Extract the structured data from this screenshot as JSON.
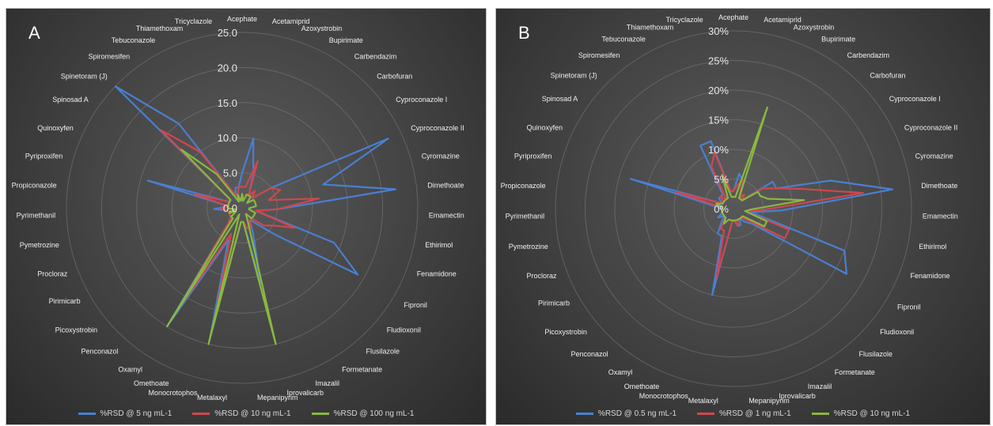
{
  "chart_data": [
    {
      "type": "radar",
      "panel_label": "A",
      "categories": [
        "Acephate",
        "Acetamiprid",
        "Azoxystrobin",
        "Bupirimate",
        "Carbendazim",
        "Carbofuran",
        "Cyproconazole I",
        "Cyproconazole II",
        "Cyromazine",
        "Dimethoate",
        "Emamectin",
        "Ethirimol",
        "Fenamidone",
        "Fipronil",
        "Fludioxonil",
        "Flusilazole",
        "Formetanate",
        "Imazalil",
        "Iprovalicarb",
        "Mepanipyrim",
        "Metalaxyl",
        "Monocrotophos",
        "Omethoate",
        "Oxamyl",
        "Penconazol",
        "Picoxystrobin",
        "Pirimicarb",
        "Procloraz",
        "Pymetrozine",
        "Pyrimethanil",
        "Propiconazole",
        "Pyriproxifen",
        "Quinoxyfen",
        "Spinosad A",
        "Spinetoram (J)",
        "Spiromesifen",
        "Tebuconazole",
        "Thiamethoxam",
        "Tricyclazole"
      ],
      "tick_labels": [
        "0.0",
        "5.0",
        "10.0",
        "15.0",
        "20.0",
        "25.0"
      ],
      "rmax": 25,
      "series": [
        {
          "name": "%RSD @ 5 ng mL-1",
          "color": "#4a7fd1",
          "values": [
            5,
            10,
            5,
            2,
            3,
            2,
            5,
            23,
            12,
            22,
            5,
            2,
            14,
            19,
            6,
            3,
            2,
            4,
            11,
            2,
            2,
            19,
            5,
            20,
            3,
            2,
            2,
            2,
            2,
            4,
            2,
            14,
            2,
            2,
            25,
            15,
            2,
            3,
            3
          ]
        },
        {
          "name": "%RSD @ 10 ng mL-1",
          "color": "#d0474d",
          "values": [
            3,
            3,
            7,
            2,
            3,
            2,
            5,
            6,
            4,
            11,
            5,
            2,
            8,
            5,
            4,
            2,
            2,
            3,
            3,
            2,
            2,
            16,
            4,
            17,
            3,
            2,
            2,
            2,
            2,
            3,
            2,
            7,
            2,
            2,
            16,
            10,
            2,
            2,
            3
          ]
        },
        {
          "name": "%RSD @ 100 ng mL-1",
          "color": "#8ab840",
          "values": [
            2,
            1,
            2,
            2,
            2,
            1,
            2,
            2,
            2,
            2,
            1,
            1,
            2,
            2,
            2,
            2,
            1,
            2,
            20,
            2,
            2,
            20,
            1,
            20,
            2,
            2,
            1,
            2,
            1,
            2,
            2,
            2,
            2,
            2,
            12,
            6,
            1,
            2,
            1
          ]
        }
      ]
    },
    {
      "type": "radar",
      "panel_label": "B",
      "categories": [
        "Acephate",
        "Acetamiprid",
        "Azoxystrobin",
        "Bupirimate",
        "Carbendazim",
        "Carbofuran",
        "Cyproconazole I",
        "Cyproconazole II",
        "Cyromazine",
        "Dimethoate",
        "Emamectin",
        "Ethirimol",
        "Fenamidone",
        "Fipronil",
        "Fludioxonil",
        "Flusilazole",
        "Formetanate",
        "Imazalil",
        "Iprovalicarb",
        "Mepanipyrim",
        "Metalaxyl",
        "Monocrotophos",
        "Omethoate",
        "Oxamyl",
        "Penconazol",
        "Picoxystrobin",
        "Pirimicarb",
        "Procloraz",
        "Pymetrozine",
        "Pyrimethanil",
        "Propiconazole",
        "Pyriproxifen",
        "Quinoxyfen",
        "Spinosad A",
        "Spinetoram (J)",
        "Spiromesifen",
        "Tebuconazole",
        "Thiamethoxam",
        "Tricyclazole"
      ],
      "tick_labels": [
        "0%",
        "5%",
        "10%",
        "15%",
        "20%",
        "25%",
        "30%"
      ],
      "rmax": 30,
      "series": [
        {
          "name": "%RSD @ 0.5 ng mL-1",
          "color": "#4a7fd1",
          "values": [
            3,
            6,
            5,
            2,
            3,
            2,
            8,
            8,
            17,
            27,
            8,
            3,
            20,
            22,
            4,
            3,
            2,
            3,
            3,
            2,
            2,
            15,
            5,
            5,
            3,
            2,
            3,
            2,
            2,
            2,
            3,
            18,
            2,
            3,
            3,
            3,
            12,
            12,
            3
          ]
        },
        {
          "name": "%RSD @ 1 ng mL-1",
          "color": "#d0474d",
          "values": [
            3,
            4,
            5,
            2,
            3,
            2,
            6,
            8,
            12,
            22,
            5,
            2,
            10,
            10,
            3,
            2,
            2,
            2,
            3,
            2,
            2,
            12,
            4,
            4,
            2,
            2,
            2,
            2,
            2,
            2,
            2,
            10,
            2,
            2,
            3,
            2,
            8,
            10,
            3
          ]
        },
        {
          "name": "%RSD @ 10 ng mL-1",
          "color": "#8ab840",
          "values": [
            2,
            2,
            18,
            2,
            2,
            2,
            5,
            5,
            6,
            12,
            3,
            2,
            6,
            6,
            2,
            2,
            2,
            2,
            2,
            2,
            2,
            2,
            2,
            3,
            2,
            2,
            2,
            2,
            2,
            2,
            2,
            3,
            2,
            2,
            2,
            2,
            2,
            6,
            2
          ]
        }
      ]
    }
  ]
}
